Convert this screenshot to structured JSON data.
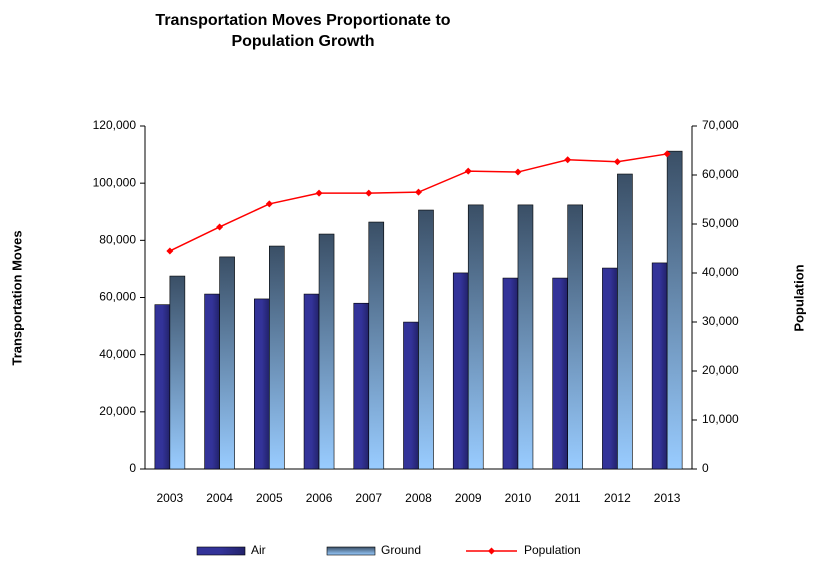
{
  "chart_data": {
    "type": "bar-line",
    "title": "Transportation Moves Proportionate to Population Growth",
    "y_label": "Transportation Moves",
    "y2_label": "Population",
    "categories": [
      "2003",
      "2004",
      "2005",
      "2006",
      "2007",
      "2008",
      "2009",
      "2010",
      "2011",
      "2012",
      "2013"
    ],
    "series": [
      {
        "name": "Air",
        "color": "#333399",
        "type": "bar",
        "values": [
          57500,
          61200,
          59500,
          61200,
          58000,
          51400,
          68600,
          66800,
          66800,
          70300,
          72100
        ]
      },
      {
        "name": "Ground",
        "color": "#99ccff",
        "type": "bar",
        "values": [
          67500,
          74200,
          78000,
          82200,
          86400,
          90600,
          92400,
          92400,
          92400,
          103200,
          111200
        ]
      },
      {
        "name": "Population",
        "color": "#ff0000",
        "type": "line",
        "axis": "y2",
        "values": [
          44500,
          49400,
          54100,
          56300,
          56300,
          56500,
          60800,
          60600,
          63100,
          62700,
          64300
        ]
      }
    ],
    "ylim": [
      0,
      120000
    ],
    "yticks": [
      0,
      {
        "value": 20000,
        "label": "20,000"
      },
      {
        "value": 40000,
        "label": "40,000"
      },
      {
        "value": 60000,
        "label": "60,000"
      },
      {
        "value": 80000,
        "label": "80,000"
      },
      {
        "value": 100000,
        "label": "100,000"
      },
      {
        "value": 120000,
        "label": "120,000"
      }
    ],
    "y2lim": [
      0,
      70000
    ],
    "y2ticks": [
      0,
      {
        "value": 10000,
        "label": "10,000"
      },
      {
        "value": 20000,
        "label": "20,000"
      },
      {
        "value": 30000,
        "label": "30,000"
      },
      {
        "value": 40000,
        "label": "40,000"
      },
      {
        "value": 50000,
        "label": "50,000"
      },
      {
        "value": 60000,
        "label": "60,000"
      },
      {
        "value": 70000,
        "label": "70,000"
      }
    ],
    "legend": "bottom"
  }
}
